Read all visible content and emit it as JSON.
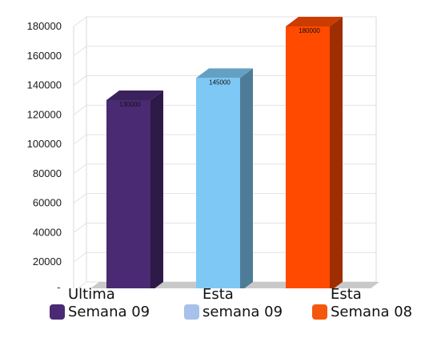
{
  "chart_data": {
    "type": "bar",
    "categories": [
      "Ultima Semana 09",
      "Esta semana 09",
      "Esta Semana 08"
    ],
    "values": [
      130000,
      145000,
      180000
    ],
    "data_labels": [
      "130000",
      "145000",
      "180000"
    ],
    "colors": [
      "#4a2a73",
      "#7dc8f5",
      "#ff4a00"
    ],
    "ylim": [
      0,
      180000
    ],
    "yticks": [
      "0",
      "20000",
      "40000",
      "60000",
      "80000",
      "100000",
      "120000",
      "140000",
      "160000",
      "180000"
    ],
    "grid": true,
    "style": "3d-column",
    "legend_position": "bottom"
  },
  "legend": [
    {
      "line1": "Ultima",
      "line2": "Semana 09",
      "color": "#4a2a73"
    },
    {
      "line1": "Esta",
      "line2": "semana 09",
      "color": "#a7c1ea"
    },
    {
      "line1": "Esta",
      "line2": "Semana 08",
      "color": "#f4580c"
    }
  ]
}
